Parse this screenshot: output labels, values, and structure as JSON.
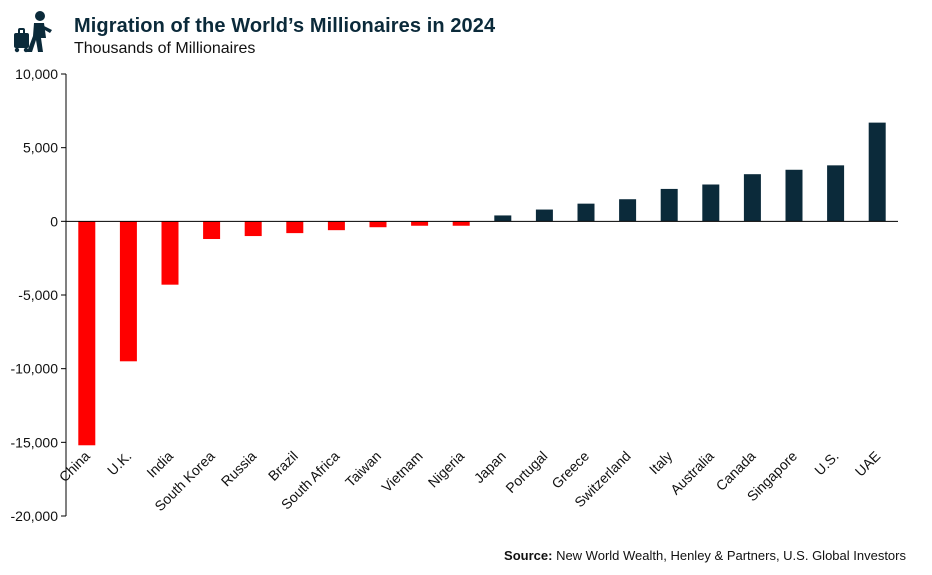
{
  "header": {
    "title": "Migration of the World’s Millionaires in 2024",
    "subtitle": "Thousands of Millionaires"
  },
  "footer": {
    "source_label": "Source:",
    "source_text": "New World Wealth, Henley & Partners, U.S. Global Investors"
  },
  "colors": {
    "negative": "#ff0000",
    "positive": "#0b2a3a",
    "axis": "#000000",
    "title": "#0b2a3a"
  },
  "icons": {
    "logo": "traveler-with-suitcase-icon"
  },
  "chart_data": {
    "type": "bar",
    "categories": [
      "China",
      "U.K.",
      "India",
      "South Korea",
      "Russia",
      "Brazil",
      "South Africa",
      "Taiwan",
      "Vietnam",
      "Nigeria",
      "Japan",
      "Portugal",
      "Greece",
      "Switzerland",
      "Italy",
      "Australia",
      "Canada",
      "Singapore",
      "U.S.",
      "UAE"
    ],
    "values": [
      -15200,
      -9500,
      -4300,
      -1200,
      -1000,
      -800,
      -600,
      -400,
      -300,
      -300,
      400,
      800,
      1200,
      1500,
      2200,
      2500,
      3200,
      3500,
      3800,
      6700
    ],
    "ylim": [
      -20000,
      10000
    ],
    "yticks": [
      10000,
      5000,
      0,
      -5000,
      -10000,
      -15000,
      -20000
    ],
    "ytick_labels": [
      "10,000",
      "5,000",
      "0",
      "-5,000",
      "-10,000",
      "-15,000",
      "-20,000"
    ],
    "xlabel": "",
    "ylabel": "",
    "grid": false,
    "legend": "none"
  }
}
